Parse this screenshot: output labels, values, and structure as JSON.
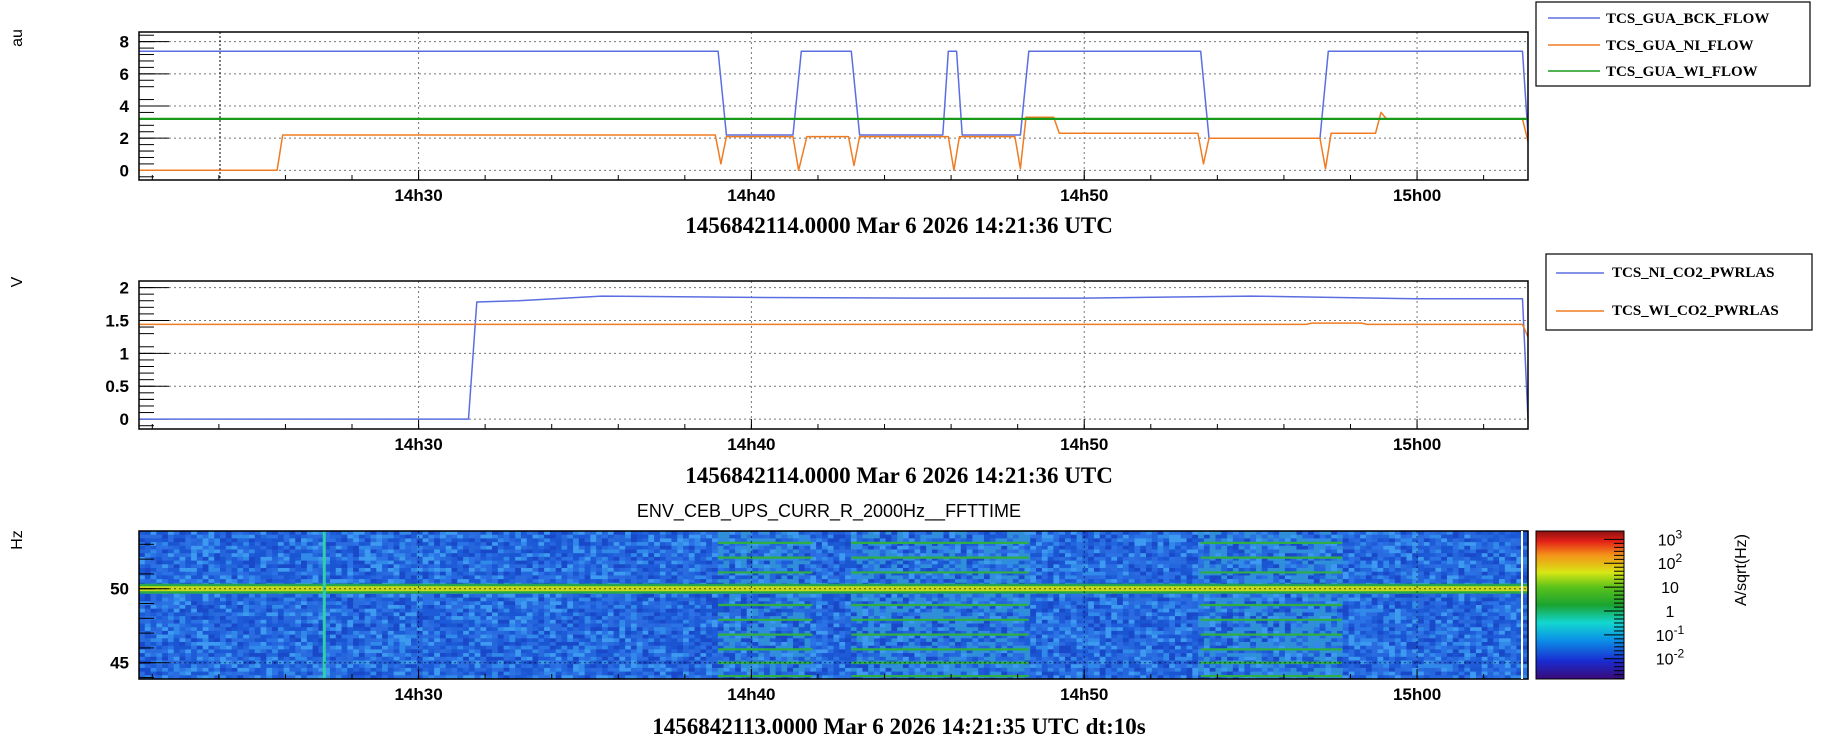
{
  "chart_data": [
    {
      "type": "line",
      "ylabel": "au",
      "xlim": [
        "14:21:36",
        "15:03:20"
      ],
      "x_ticks": [
        "14h30",
        "14h40",
        "14h50",
        "15h00"
      ],
      "ylim": [
        -0.6,
        8.6
      ],
      "y_ticks": [
        "0",
        "2",
        "4",
        "6",
        "8"
      ],
      "grid": true,
      "legend_position": "top-right",
      "caption": "1456842114.0000 Mar 6 2026 14:21:36 UTC",
      "series": [
        {
          "name": "TCS_GUA_BCK_FLOW",
          "color": "#5b6ee1",
          "points": [
            [
              "14:21:36",
              7.4
            ],
            [
              "14:39:00",
              7.4
            ],
            [
              "14:39:15",
              2.2
            ],
            [
              "14:41:15",
              2.2
            ],
            [
              "14:41:30",
              7.4
            ],
            [
              "14:43:00",
              7.4
            ],
            [
              "14:43:15",
              2.2
            ],
            [
              "14:45:45",
              2.2
            ],
            [
              "14:45:55",
              7.4
            ],
            [
              "14:46:10",
              7.4
            ],
            [
              "14:46:20",
              2.2
            ],
            [
              "14:48:05",
              2.2
            ],
            [
              "14:48:20",
              7.4
            ],
            [
              "14:53:30",
              7.4
            ],
            [
              "14:53:45",
              2.0
            ],
            [
              "14:57:05",
              2.0
            ],
            [
              "14:57:20",
              7.4
            ],
            [
              "15:03:10",
              7.4
            ],
            [
              "15:03:20",
              2.2
            ]
          ]
        },
        {
          "name": "TCS_GUA_NI_FLOW",
          "color": "#f07b22",
          "points": [
            [
              "14:21:36",
              0.0
            ],
            [
              "14:25:45",
              0.0
            ],
            [
              "14:25:55",
              2.2
            ],
            [
              "14:38:55",
              2.2
            ],
            [
              "14:39:05",
              0.4
            ],
            [
              "14:39:15",
              2.1
            ],
            [
              "14:41:15",
              2.1
            ],
            [
              "14:41:25",
              0.0
            ],
            [
              "14:41:40",
              2.1
            ],
            [
              "14:42:55",
              2.1
            ],
            [
              "14:43:05",
              0.3
            ],
            [
              "14:43:15",
              2.1
            ],
            [
              "14:45:55",
              2.1
            ],
            [
              "14:46:05",
              0.0
            ],
            [
              "14:46:15",
              2.1
            ],
            [
              "14:47:55",
              2.1
            ],
            [
              "14:48:05",
              0.1
            ],
            [
              "14:48:15",
              3.3
            ],
            [
              "14:49:05",
              3.3
            ],
            [
              "14:49:15",
              2.3
            ],
            [
              "14:53:25",
              2.3
            ],
            [
              "14:53:35",
              0.4
            ],
            [
              "14:53:45",
              2.0
            ],
            [
              "14:57:05",
              2.0
            ],
            [
              "14:57:15",
              0.1
            ],
            [
              "14:57:25",
              2.3
            ],
            [
              "14:58:45",
              2.3
            ],
            [
              "14:58:55",
              3.6
            ],
            [
              "14:59:05",
              3.2
            ],
            [
              "15:03:10",
              3.2
            ],
            [
              "15:03:20",
              1.8
            ]
          ]
        },
        {
          "name": "TCS_GUA_WI_FLOW",
          "color": "#1a9a1a",
          "points": [
            [
              "14:21:36",
              3.2
            ],
            [
              "15:03:20",
              3.2
            ]
          ]
        }
      ]
    },
    {
      "type": "line",
      "ylabel": "V",
      "xlim": [
        "14:21:36",
        "15:03:20"
      ],
      "x_ticks": [
        "14h30",
        "14h40",
        "14h50",
        "15h00"
      ],
      "ylim": [
        -0.15,
        2.1
      ],
      "y_ticks": [
        "0",
        "0.5",
        "1",
        "1.5",
        "2"
      ],
      "grid": true,
      "legend_position": "top-right",
      "caption": "1456842114.0000 Mar 6 2026 14:21:36 UTC",
      "series": [
        {
          "name": "TCS_NI_CO2_PWRLAS",
          "color": "#5b6ee1",
          "points": [
            [
              "14:21:36",
              0.0
            ],
            [
              "14:31:30",
              0.0
            ],
            [
              "14:31:45",
              1.78
            ],
            [
              "14:33:00",
              1.8
            ],
            [
              "14:35:30",
              1.87
            ],
            [
              "14:40:00",
              1.85
            ],
            [
              "14:45:00",
              1.84
            ],
            [
              "14:50:00",
              1.84
            ],
            [
              "14:55:00",
              1.87
            ],
            [
              "15:00:00",
              1.83
            ],
            [
              "15:03:10",
              1.83
            ],
            [
              "15:03:20",
              0.0
            ]
          ]
        },
        {
          "name": "TCS_WI_CO2_PWRLAS",
          "color": "#f07b22",
          "points": [
            [
              "14:21:36",
              1.44
            ],
            [
              "14:56:40",
              1.44
            ],
            [
              "14:56:50",
              1.46
            ],
            [
              "14:58:20",
              1.46
            ],
            [
              "14:58:30",
              1.44
            ],
            [
              "15:03:10",
              1.44
            ],
            [
              "15:03:20",
              1.25
            ]
          ]
        }
      ]
    },
    {
      "type": "heatmap",
      "title": "ENV_CEB_UPS_CURR_R_2000Hz__FFTTIME",
      "ylabel": "Hz",
      "zlabel": "A/sqrt(Hz)",
      "xlim": [
        "14:21:36",
        "15:03:20"
      ],
      "x_ticks": [
        "14h30",
        "14h40",
        "14h50",
        "15h00"
      ],
      "ylim": [
        43.9,
        53.9
      ],
      "y_ticks": [
        "45",
        "50"
      ],
      "z_ticks": [
        {
          "base": "10",
          "exp": "3"
        },
        {
          "base": "10",
          "exp": "2"
        },
        {
          "base": "10",
          "exp": ""
        },
        {
          "base": "1",
          "exp": ""
        },
        {
          "base": "10",
          "exp": "-1"
        },
        {
          "base": "10",
          "exp": "-2"
        }
      ],
      "line_frequency_hz": 50,
      "harmonic_line_blocks": [
        [
          "14:39:00",
          "14:41:50"
        ],
        [
          "14:43:00",
          "14:48:20"
        ],
        [
          "14:53:30",
          "14:57:45"
        ]
      ],
      "caption": "1456842113.0000 Mar 6 2026 14:21:35 UTC dt:10s"
    }
  ]
}
